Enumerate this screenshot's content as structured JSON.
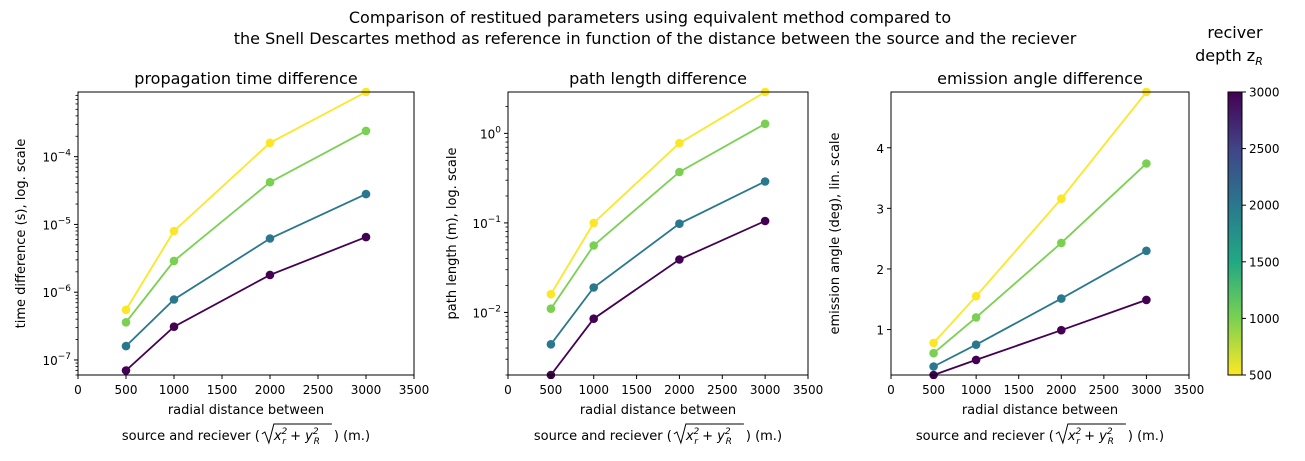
{
  "figure": {
    "suptitle_line1": "Comparison of restitued parameters using equivalent method compared to",
    "suptitle_line2": "the Snell Descartes method as reference in function of the distance between the source and the reciever"
  },
  "colorbar": {
    "title_line1": "reciver",
    "title_line2": "depth z",
    "title_subscript": "R",
    "range": [
      500,
      3000
    ],
    "ticks": [
      "500",
      "1000",
      "1500",
      "2000",
      "2500",
      "3000"
    ],
    "colormap": "viridis_r",
    "colors": [
      "#fde725",
      "#7ad151",
      "#22a884",
      "#2a788e",
      "#414487",
      "#440154"
    ]
  },
  "chart_data": [
    {
      "type": "line",
      "title": "propagation time difference",
      "xlabel_line1": "radial distance between",
      "xlabel_line2_prefix": "source and reciever (",
      "xlabel_line2_suffix": ") (m.)",
      "ylabel": "time difference (s), log. scale",
      "x": [
        500,
        1000,
        2000,
        3000
      ],
      "xlim": [
        0,
        3500
      ],
      "xticks": [
        "0",
        "500",
        "1000",
        "1500",
        "2000",
        "2500",
        "3000",
        "3500"
      ],
      "yscale": "log",
      "ylim": [
        6e-08,
        0.0009
      ],
      "yticks": [
        {
          "value": 1e-07,
          "base": "10",
          "exp": "−7"
        },
        {
          "value": 1e-06,
          "base": "10",
          "exp": "−6"
        },
        {
          "value": 1e-05,
          "base": "10",
          "exp": "−5"
        },
        {
          "value": 0.0001,
          "base": "10",
          "exp": "−4"
        }
      ],
      "grid": false,
      "series": [
        {
          "depth": 500,
          "color": "#fde725",
          "values": [
            5.5e-07,
            8e-06,
            0.00016,
            0.0009
          ]
        },
        {
          "depth": 1000,
          "color": "#7ad151",
          "values": [
            3.6e-07,
            2.9e-06,
            4.2e-05,
            0.00024
          ]
        },
        {
          "depth": 2000,
          "color": "#2a788e",
          "values": [
            1.6e-07,
            7.8e-07,
            6.2e-06,
            2.8e-05
          ]
        },
        {
          "depth": 3000,
          "color": "#440154",
          "values": [
            7e-08,
            3.1e-07,
            1.8e-06,
            6.5e-06
          ]
        }
      ]
    },
    {
      "type": "line",
      "title": "path length difference",
      "xlabel_line1": "radial distance between",
      "xlabel_line2_prefix": "source and reciever (",
      "xlabel_line2_suffix": ") (m.)",
      "ylabel": "path length (m), log. scale",
      "x": [
        500,
        1000,
        2000,
        3000
      ],
      "xlim": [
        0,
        3500
      ],
      "xticks": [
        "0",
        "500",
        "1000",
        "1500",
        "2000",
        "2500",
        "3000",
        "3500"
      ],
      "yscale": "log",
      "ylim": [
        0.002,
        2.9
      ],
      "yticks": [
        {
          "value": 0.01,
          "base": "10",
          "exp": "−2"
        },
        {
          "value": 0.1,
          "base": "10",
          "exp": "−1"
        },
        {
          "value": 1,
          "base": "10",
          "exp": "0"
        }
      ],
      "grid": false,
      "series": [
        {
          "depth": 500,
          "color": "#fde725",
          "values": [
            0.016,
            0.1,
            0.78,
            2.9
          ]
        },
        {
          "depth": 1000,
          "color": "#7ad151",
          "values": [
            0.011,
            0.056,
            0.37,
            1.28
          ]
        },
        {
          "depth": 2000,
          "color": "#2a788e",
          "values": [
            0.0044,
            0.019,
            0.098,
            0.29
          ]
        },
        {
          "depth": 3000,
          "color": "#440154",
          "values": [
            0.002,
            0.0085,
            0.039,
            0.105
          ]
        }
      ]
    },
    {
      "type": "line",
      "title": "emission angle difference",
      "xlabel_line1": "radial distance between",
      "xlabel_line2_prefix": "source and reciever (",
      "xlabel_line2_suffix": ") (m.)",
      "ylabel": "emission angle (deg), lin. scale",
      "x": [
        500,
        1000,
        2000,
        3000
      ],
      "xlim": [
        0,
        3500
      ],
      "xticks": [
        "0",
        "500",
        "1000",
        "1500",
        "2000",
        "2500",
        "3000",
        "3500"
      ],
      "yscale": "linear",
      "ylim": [
        0.25,
        4.92
      ],
      "yticks": [
        {
          "value": 1,
          "label": "1"
        },
        {
          "value": 2,
          "label": "2"
        },
        {
          "value": 3,
          "label": "3"
        },
        {
          "value": 4,
          "label": "4"
        }
      ],
      "grid": false,
      "series": [
        {
          "depth": 500,
          "color": "#fde725",
          "values": [
            0.78,
            1.55,
            3.16,
            4.92
          ]
        },
        {
          "depth": 1000,
          "color": "#7ad151",
          "values": [
            0.61,
            1.2,
            2.43,
            3.74
          ]
        },
        {
          "depth": 2000,
          "color": "#2a788e",
          "values": [
            0.39,
            0.75,
            1.51,
            2.3
          ]
        },
        {
          "depth": 3000,
          "color": "#440154",
          "values": [
            0.25,
            0.5,
            0.99,
            1.49
          ]
        }
      ]
    }
  ]
}
